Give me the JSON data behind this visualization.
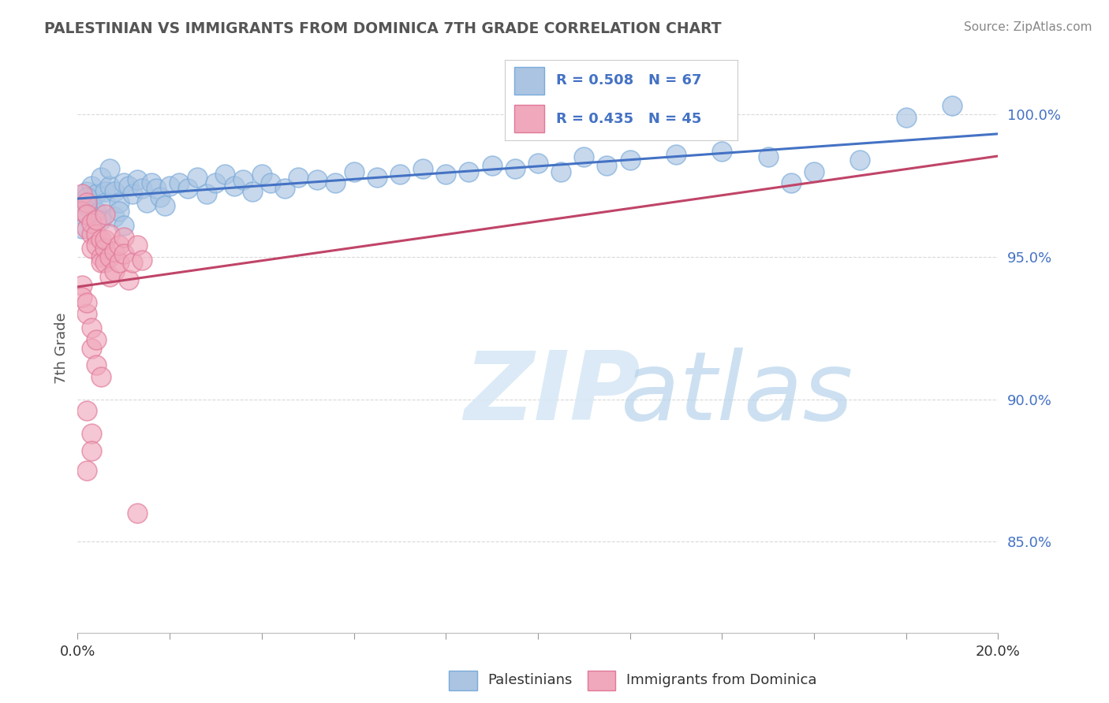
{
  "title": "PALESTINIAN VS IMMIGRANTS FROM DOMINICA 7TH GRADE CORRELATION CHART",
  "source": "Source: ZipAtlas.com",
  "ylabel": "7th Grade",
  "ytick_labels": [
    "85.0%",
    "90.0%",
    "95.0%",
    "100.0%"
  ],
  "ytick_values": [
    0.85,
    0.9,
    0.95,
    1.0
  ],
  "xlim": [
    0.0,
    0.2
  ],
  "ylim": [
    0.818,
    1.018
  ],
  "blue_R": 0.508,
  "blue_N": 67,
  "pink_R": 0.435,
  "pink_N": 45,
  "blue_color": "#aac4e2",
  "pink_color": "#f0a8bc",
  "blue_edge_color": "#7aabda",
  "pink_edge_color": "#e07898",
  "blue_line_color": "#4472c4",
  "pink_line_color": "#c04468",
  "legend_text_color": "#4472c4",
  "blue_scatter": [
    [
      0.002,
      0.973
    ],
    [
      0.003,
      0.969
    ],
    [
      0.003,
      0.975
    ],
    [
      0.004,
      0.966
    ],
    [
      0.004,
      0.972
    ],
    [
      0.005,
      0.978
    ],
    [
      0.005,
      0.963
    ],
    [
      0.006,
      0.973
    ],
    [
      0.006,
      0.969
    ],
    [
      0.007,
      0.975
    ],
    [
      0.007,
      0.981
    ],
    [
      0.008,
      0.964
    ],
    [
      0.008,
      0.973
    ],
    [
      0.009,
      0.969
    ],
    [
      0.009,
      0.966
    ],
    [
      0.01,
      0.976
    ],
    [
      0.011,
      0.975
    ],
    [
      0.012,
      0.972
    ],
    [
      0.013,
      0.977
    ],
    [
      0.014,
      0.974
    ],
    [
      0.015,
      0.969
    ],
    [
      0.016,
      0.976
    ],
    [
      0.017,
      0.974
    ],
    [
      0.018,
      0.971
    ],
    [
      0.019,
      0.968
    ],
    [
      0.02,
      0.975
    ],
    [
      0.022,
      0.976
    ],
    [
      0.024,
      0.974
    ],
    [
      0.026,
      0.978
    ],
    [
      0.028,
      0.972
    ],
    [
      0.03,
      0.976
    ],
    [
      0.032,
      0.979
    ],
    [
      0.034,
      0.975
    ],
    [
      0.036,
      0.977
    ],
    [
      0.038,
      0.973
    ],
    [
      0.04,
      0.979
    ],
    [
      0.042,
      0.976
    ],
    [
      0.045,
      0.974
    ],
    [
      0.048,
      0.978
    ],
    [
      0.052,
      0.977
    ],
    [
      0.056,
      0.976
    ],
    [
      0.06,
      0.98
    ],
    [
      0.065,
      0.978
    ],
    [
      0.07,
      0.979
    ],
    [
      0.075,
      0.981
    ],
    [
      0.08,
      0.979
    ],
    [
      0.085,
      0.98
    ],
    [
      0.09,
      0.982
    ],
    [
      0.095,
      0.981
    ],
    [
      0.1,
      0.983
    ],
    [
      0.105,
      0.98
    ],
    [
      0.11,
      0.985
    ],
    [
      0.115,
      0.982
    ],
    [
      0.12,
      0.984
    ],
    [
      0.13,
      0.986
    ],
    [
      0.14,
      0.987
    ],
    [
      0.15,
      0.985
    ],
    [
      0.155,
      0.976
    ],
    [
      0.16,
      0.98
    ],
    [
      0.17,
      0.984
    ],
    [
      0.001,
      0.965
    ],
    [
      0.001,
      0.96
    ],
    [
      0.002,
      0.968
    ],
    [
      0.002,
      0.971
    ],
    [
      0.01,
      0.961
    ],
    [
      0.18,
      0.999
    ],
    [
      0.19,
      1.003
    ]
  ],
  "pink_scatter": [
    [
      0.001,
      0.972
    ],
    [
      0.001,
      0.966
    ],
    [
      0.002,
      0.969
    ],
    [
      0.002,
      0.96
    ],
    [
      0.002,
      0.965
    ],
    [
      0.003,
      0.958
    ],
    [
      0.003,
      0.953
    ],
    [
      0.003,
      0.962
    ],
    [
      0.004,
      0.958
    ],
    [
      0.004,
      0.954
    ],
    [
      0.004,
      0.963
    ],
    [
      0.005,
      0.956
    ],
    [
      0.005,
      0.95
    ],
    [
      0.005,
      0.948
    ],
    [
      0.006,
      0.953
    ],
    [
      0.006,
      0.948
    ],
    [
      0.006,
      0.956
    ],
    [
      0.007,
      0.943
    ],
    [
      0.007,
      0.95
    ],
    [
      0.007,
      0.958
    ],
    [
      0.008,
      0.945
    ],
    [
      0.008,
      0.952
    ],
    [
      0.009,
      0.948
    ],
    [
      0.009,
      0.954
    ],
    [
      0.01,
      0.957
    ],
    [
      0.01,
      0.951
    ],
    [
      0.011,
      0.942
    ],
    [
      0.012,
      0.948
    ],
    [
      0.013,
      0.954
    ],
    [
      0.014,
      0.949
    ],
    [
      0.002,
      0.93
    ],
    [
      0.003,
      0.925
    ],
    [
      0.003,
      0.918
    ],
    [
      0.004,
      0.921
    ],
    [
      0.004,
      0.912
    ],
    [
      0.005,
      0.908
    ],
    [
      0.002,
      0.896
    ],
    [
      0.003,
      0.888
    ],
    [
      0.003,
      0.882
    ],
    [
      0.001,
      0.94
    ],
    [
      0.001,
      0.936
    ],
    [
      0.002,
      0.934
    ],
    [
      0.002,
      0.875
    ],
    [
      0.013,
      0.86
    ],
    [
      0.006,
      0.965
    ]
  ],
  "watermark_zip": "ZIP",
  "watermark_atlas": "atlas",
  "background_color": "#ffffff",
  "grid_color": "#d0d0d0",
  "grid_style": "--",
  "grid_alpha": 0.8
}
